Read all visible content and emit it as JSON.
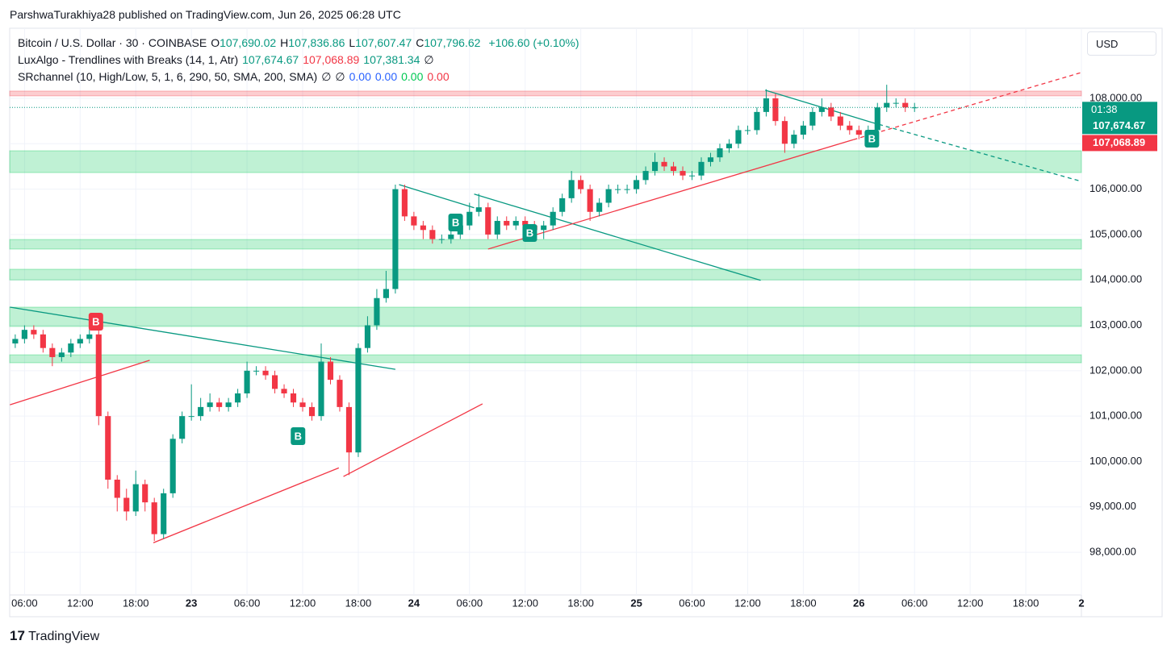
{
  "header": {
    "byline": "ParshwaTurakhiya28 published on TradingView.com, Jun 26, 2025 06:28 UTC"
  },
  "legend": {
    "symbol": "Bitcoin / U.S. Dollar · 30 · COINBASE",
    "ohlc": [
      {
        "key": "O",
        "text": "107,690.02"
      },
      {
        "key": "H",
        "text": "107,836.86"
      },
      {
        "key": "L",
        "text": "107,607.47"
      },
      {
        "key": "C",
        "text": "107,796.62"
      }
    ],
    "change": "+106.60 (+0.10%)",
    "indicator1": {
      "name": "LuxAlgo - Trendlines with Breaks (14, 1, Atr)",
      "values": [
        {
          "text": "107,674.67",
          "color": "#089981"
        },
        {
          "text": "107,068.89",
          "color": "#f23645"
        },
        {
          "text": "107,381.34",
          "color": "#089981"
        },
        {
          "text": "∅",
          "color": "#131722"
        }
      ]
    },
    "indicator2": {
      "name": "SRchannel (10, High/Low, 5, 1, 6, 290, 50, SMA, 200, SMA)",
      "values": [
        {
          "text": "∅",
          "color": "#131722"
        },
        {
          "text": "∅",
          "color": "#131722"
        },
        {
          "text": "0.00",
          "color": "#2962ff"
        },
        {
          "text": "0.00",
          "color": "#2962ff"
        },
        {
          "text": "0.00",
          "color": "#00c853"
        },
        {
          "text": "0.00",
          "color": "#f23645"
        }
      ]
    }
  },
  "currency_button": "USD",
  "footer": {
    "brand": "TradingView"
  },
  "chart_data": {
    "type": "candlestick",
    "up_color": "#089981",
    "down_color": "#f23645",
    "grid": true,
    "xlim": [
      4.4,
      120
    ],
    "ylim": [
      97060,
      109545
    ],
    "xticks": [
      {
        "value": 6,
        "label": "06:00"
      },
      {
        "value": 12,
        "label": "12:00"
      },
      {
        "value": 18,
        "label": "18:00"
      },
      {
        "value": 24,
        "label": "23"
      },
      {
        "value": 30,
        "label": "06:00"
      },
      {
        "value": 36,
        "label": "12:00"
      },
      {
        "value": 42,
        "label": "18:00"
      },
      {
        "value": 48,
        "label": "24"
      },
      {
        "value": 54,
        "label": "06:00"
      },
      {
        "value": 60,
        "label": "12:00"
      },
      {
        "value": 66,
        "label": "18:00"
      },
      {
        "value": 72,
        "label": "25"
      },
      {
        "value": 78,
        "label": "06:00"
      },
      {
        "value": 84,
        "label": "12:00"
      },
      {
        "value": 90,
        "label": "18:00"
      },
      {
        "value": 96,
        "label": "26"
      },
      {
        "value": 102,
        "label": "06:00"
      },
      {
        "value": 108,
        "label": "12:00"
      },
      {
        "value": 114,
        "label": "18:00"
      },
      {
        "value": 120,
        "label": "2"
      }
    ],
    "yticks": [
      {
        "value": 98000,
        "label": "98,000.00"
      },
      {
        "value": 99000,
        "label": "99,000.00"
      },
      {
        "value": 100000,
        "label": "100,000.00"
      },
      {
        "value": 101000,
        "label": "101,000.00"
      },
      {
        "value": 102000,
        "label": "102,000.00"
      },
      {
        "value": 103000,
        "label": "103,000.00"
      },
      {
        "value": 104000,
        "label": "104,000.00"
      },
      {
        "value": 105000,
        "label": "105,000.00"
      },
      {
        "value": 106000,
        "label": "106,000.00"
      },
      {
        "value": 107000,
        "label": "107,000.00"
      },
      {
        "value": 108000,
        "label": "108,000.00"
      }
    ],
    "x": [
      5,
      6,
      7,
      8,
      9,
      10,
      11,
      12,
      13,
      14,
      15,
      16,
      17,
      18,
      19,
      20,
      21,
      22,
      23,
      24,
      25,
      26,
      27,
      28,
      29,
      30,
      31,
      32,
      33,
      34,
      35,
      36,
      37,
      38,
      39,
      40,
      41,
      42,
      43,
      44,
      45,
      46,
      47,
      48,
      49,
      50,
      51,
      52,
      53,
      54,
      55,
      56,
      57,
      58,
      59,
      60,
      61,
      62,
      63,
      64,
      65,
      66,
      67,
      68,
      69,
      70,
      71,
      72,
      73,
      74,
      75,
      76,
      77,
      78,
      79,
      80,
      81,
      82,
      83,
      84,
      85,
      86,
      87,
      88,
      89,
      90,
      91,
      92,
      93,
      94,
      95,
      96,
      97,
      98,
      99,
      100,
      101,
      102
    ],
    "open": [
      102600,
      102700,
      102900,
      102800,
      102500,
      102300,
      102400,
      102600,
      102700,
      102800,
      101000,
      99600,
      99200,
      98900,
      99500,
      99100,
      98400,
      99300,
      100500,
      101000,
      101000,
      101200,
      101300,
      101200,
      101300,
      101500,
      102000,
      102000,
      101900,
      101600,
      101500,
      101300,
      101200,
      101000,
      102200,
      101800,
      101200,
      100200,
      102500,
      103000,
      103600,
      103800,
      106000,
      105400,
      105200,
      105100,
      104900,
      104900,
      105000,
      105200,
      105500,
      105600,
      105000,
      105300,
      105200,
      105300,
      105200,
      105100,
      105200,
      105500,
      105800,
      106200,
      106000,
      105500,
      105700,
      106000,
      106000,
      106000,
      106200,
      106400,
      106600,
      106500,
      106400,
      106300,
      106300,
      106600,
      106700,
      106900,
      107000,
      107300,
      107300,
      107700,
      108000,
      107500,
      107000,
      107200,
      107400,
      107700,
      107800,
      107600,
      107400,
      107300,
      107200,
      107300,
      107800,
      107900,
      107900,
      107800
    ],
    "high": [
      102800,
      103000,
      103000,
      102900,
      102600,
      102500,
      102700,
      102800,
      103000,
      102900,
      101100,
      99700,
      99400,
      99800,
      99600,
      99200,
      99400,
      100600,
      101100,
      101700,
      101400,
      101500,
      101400,
      101400,
      101600,
      102200,
      102100,
      102100,
      102000,
      101700,
      101600,
      101400,
      101300,
      102600,
      102300,
      101900,
      101300,
      102600,
      103200,
      103800,
      104200,
      106100,
      106100,
      105500,
      105300,
      105200,
      105000,
      105100,
      105300,
      105700,
      105900,
      105700,
      105400,
      105400,
      105400,
      105400,
      105300,
      105300,
      105600,
      105900,
      106400,
      106300,
      106100,
      105800,
      106100,
      106100,
      106100,
      106300,
      106500,
      106800,
      106700,
      106600,
      106500,
      106400,
      106700,
      106800,
      107000,
      107100,
      107400,
      107400,
      107800,
      108200,
      108100,
      107600,
      107300,
      107500,
      107800,
      108000,
      107900,
      107700,
      107500,
      107400,
      107400,
      107900,
      108300,
      108000,
      108000,
      107900
    ],
    "low": [
      102500,
      102600,
      102700,
      102400,
      102100,
      102200,
      102300,
      102500,
      102600,
      100800,
      99400,
      98900,
      98700,
      98800,
      98900,
      98250,
      98300,
      99200,
      100400,
      100900,
      100900,
      101100,
      101100,
      101100,
      101200,
      101400,
      101900,
      101800,
      101500,
      101400,
      101200,
      101100,
      100900,
      100900,
      101700,
      101100,
      99700,
      100100,
      102400,
      102900,
      103500,
      103700,
      105300,
      105100,
      104900,
      104800,
      104800,
      104800,
      104900,
      105100,
      105400,
      104900,
      104900,
      105100,
      105100,
      105100,
      105000,
      104900,
      105100,
      105400,
      105700,
      105900,
      105300,
      105400,
      105600,
      105900,
      105900,
      105900,
      106100,
      106300,
      106400,
      106300,
      106200,
      106200,
      106200,
      106500,
      106600,
      106800,
      106900,
      107200,
      107200,
      107600,
      107400,
      106800,
      106900,
      107100,
      107300,
      107600,
      107500,
      107300,
      107200,
      107100,
      107100,
      107200,
      107700,
      107800,
      107700,
      107700
    ],
    "close": [
      102700,
      102900,
      102800,
      102500,
      102300,
      102400,
      102600,
      102700,
      102800,
      101000,
      99600,
      99200,
      98900,
      99500,
      99100,
      98400,
      99300,
      100500,
      101000,
      101000,
      101200,
      101300,
      101200,
      101300,
      101500,
      102000,
      102000,
      101900,
      101600,
      101500,
      101300,
      101200,
      101000,
      102200,
      101800,
      101200,
      100200,
      102500,
      103000,
      103600,
      103800,
      106000,
      105400,
      105200,
      105100,
      104900,
      104900,
      105000,
      105200,
      105500,
      105600,
      105000,
      105300,
      105200,
      105300,
      105200,
      105100,
      105200,
      105500,
      105800,
      106200,
      106000,
      105500,
      105700,
      106000,
      106000,
      106000,
      106200,
      106400,
      106600,
      106500,
      106400,
      106300,
      106300,
      106600,
      106700,
      106900,
      107000,
      107300,
      107300,
      107700,
      108000,
      107500,
      107000,
      107200,
      107400,
      107700,
      107800,
      107600,
      107400,
      107300,
      107200,
      107300,
      107800,
      107900,
      107900,
      107800,
      107800
    ],
    "zones": [
      {
        "low": 108055,
        "high": 108160,
        "color": "#f23645"
      },
      {
        "low": 106365,
        "high": 106845,
        "color": "#00c853"
      },
      {
        "low": 104680,
        "high": 104890,
        "color": "#00c853"
      },
      {
        "low": 104000,
        "high": 104235,
        "color": "#00c853"
      },
      {
        "low": 102975,
        "high": 103400,
        "color": "#00c853"
      },
      {
        "low": 102175,
        "high": 102350,
        "color": "#00c853"
      }
    ],
    "trendlines": [
      {
        "x": [
          4.43,
          46.0
        ],
        "y": [
          103400,
          102030
        ],
        "color": "#089981",
        "style": "solid"
      },
      {
        "x": [
          46.4,
          54.5
        ],
        "y": [
          106100,
          105590
        ],
        "color": "#089981",
        "style": "solid"
      },
      {
        "x": [
          54.5,
          85.4
        ],
        "y": [
          105890,
          103990
        ],
        "color": "#089981",
        "style": "solid"
      },
      {
        "x": [
          85.9,
          97.4
        ],
        "y": [
          108180,
          107470
        ],
        "color": "#089981",
        "style": "solid"
      },
      {
        "x": [
          97.4,
          120
        ],
        "y": [
          107470,
          106170
        ],
        "color": "#089981",
        "style": "dashed"
      },
      {
        "x": [
          4.43,
          19.5
        ],
        "y": [
          101250,
          102230
        ],
        "color": "#f23645",
        "style": "solid"
      },
      {
        "x": [
          19.9,
          39.9
        ],
        "y": [
          98210,
          99860
        ],
        "color": "#f23645",
        "style": "solid"
      },
      {
        "x": [
          40.4,
          55.4
        ],
        "y": [
          99670,
          101270
        ],
        "color": "#f23645",
        "style": "solid"
      },
      {
        "x": [
          56.0,
          95.4
        ],
        "y": [
          104680,
          107090
        ],
        "color": "#f23645",
        "style": "solid"
      },
      {
        "x": [
          95.4,
          120
        ],
        "y": [
          107090,
          108570
        ],
        "color": "#f23645",
        "style": "dashed"
      }
    ],
    "breaks": [
      {
        "label": "B",
        "x": 13.7,
        "y": 103080,
        "color": "#f23645"
      },
      {
        "label": "B",
        "x": 35.5,
        "y": 100558,
        "color": "#089981"
      },
      {
        "label": "B",
        "x": 52.5,
        "y": 105265,
        "color": "#089981"
      },
      {
        "label": "B",
        "x": 60.5,
        "y": 105034,
        "color": "#089981"
      },
      {
        "label": "B",
        "x": 97.4,
        "y": 107112,
        "color": "#089981"
      }
    ],
    "price_tags": [
      {
        "value": 107674.67,
        "label": "107,674.67",
        "time": "01:38",
        "color": "#089981"
      },
      {
        "value": 107068.89,
        "label": "107,068.89",
        "color": "#f23645"
      }
    ]
  }
}
